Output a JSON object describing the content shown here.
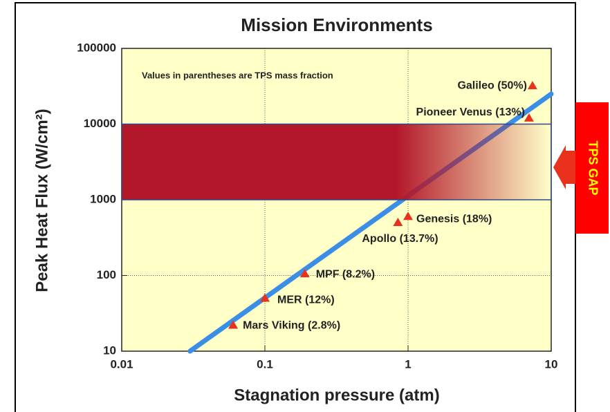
{
  "chart_data": {
    "type": "scatter",
    "title": "Mission Environments",
    "xlabel": "Stagnation pressure (atm)",
    "ylabel": "Peak Heat Flux (W/cm²)",
    "annotation": "Values in parentheses are TPS mass fraction",
    "x_log": true,
    "y_log": true,
    "grid": true,
    "xlim": [
      0.01,
      10
    ],
    "ylim": [
      10,
      100000
    ],
    "xticks": [
      0.01,
      0.1,
      1,
      10
    ],
    "yticks": [
      10,
      100,
      1000,
      10000,
      100000
    ],
    "color": "#e8321e",
    "point_labels": [
      "Galileo (50%)",
      "Pioneer Venus (13%)",
      "Genesis (18%)",
      "Apollo (13.7%)",
      "MPF (8.2%)",
      "MER (12%)",
      "Mars Viking (2.8%)"
    ],
    "x": [
      7.4,
      7,
      1.0,
      0.85,
      0.19,
      0.1,
      0.06
    ],
    "values": [
      32000,
      12000,
      600,
      500,
      105,
      50,
      22
    ],
    "trend_line": {
      "x": [
        0.03,
        10
      ],
      "values": [
        10,
        25000
      ],
      "color": "#3a8ee6"
    },
    "band": {
      "ylim": [
        1000,
        10000
      ],
      "color": "#b3182a",
      "label": "TPS GAP"
    }
  }
}
